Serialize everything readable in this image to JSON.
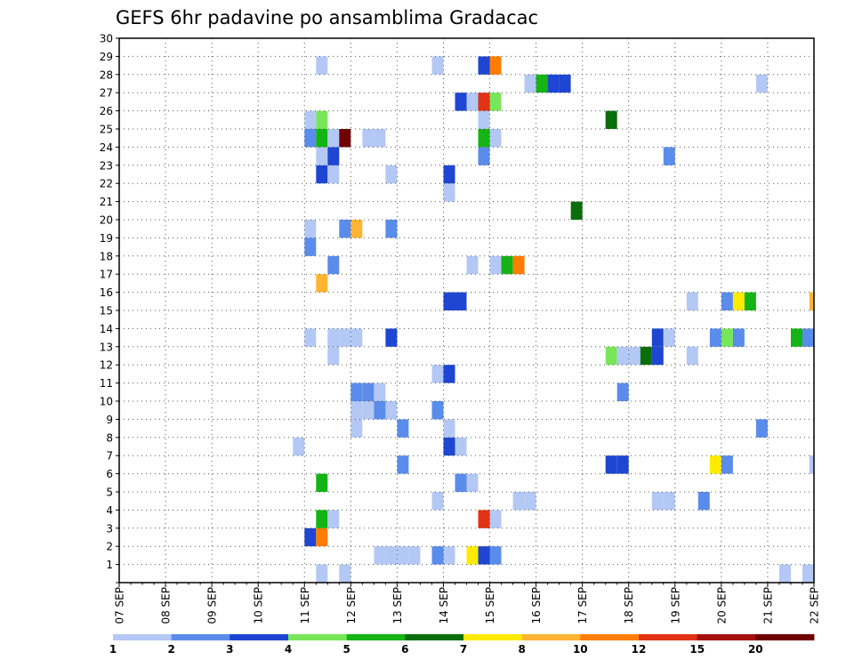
{
  "chart_data": {
    "type": "heatmap",
    "title": "GEFS 6hr padavine po ansamblima Gradacac",
    "xlabel": "",
    "ylabel": "",
    "x_tick_labels": [
      "07 SEP",
      "08 SEP",
      "09 SEP",
      "10 SEP",
      "11 SEP",
      "12 SEP",
      "13 SEP",
      "14 SEP",
      "15 SEP",
      "16 SEP",
      "17 SEP",
      "18 SEP",
      "19 SEP",
      "20 SEP",
      "21 SEP",
      "22 SEP"
    ],
    "y_tick_labels": [
      "1",
      "2",
      "3",
      "4",
      "5",
      "6",
      "7",
      "8",
      "9",
      "10",
      "11",
      "12",
      "13",
      "14",
      "15",
      "16",
      "17",
      "18",
      "19",
      "20",
      "21",
      "22",
      "23",
      "24",
      "25",
      "26",
      "27",
      "28",
      "29",
      "30"
    ],
    "x_range_days": [
      0,
      15
    ],
    "y_range": [
      0,
      30
    ],
    "step_hours": 6,
    "grid": true,
    "legend": {
      "placement": "bottom",
      "labels": [
        "1",
        "2",
        "3",
        "4",
        "5",
        "6",
        "7",
        "8",
        "10",
        "12",
        "15",
        "20"
      ],
      "colors": [
        "#b4c8f5",
        "#5a8ceb",
        "#1e46d2",
        "#78e65a",
        "#14b414",
        "#0a6e0a",
        "#ffeb00",
        "#ffb432",
        "#ff7d00",
        "#e13214",
        "#a50f0f",
        "#6e0000"
      ]
    },
    "cells": [
      {
        "t": 4.25,
        "m": 0,
        "c": 1
      },
      {
        "t": 4.75,
        "m": 0,
        "c": 1
      },
      {
        "t": 5.5,
        "m": 1,
        "c": 1
      },
      {
        "t": 5.75,
        "m": 1,
        "c": 1
      },
      {
        "t": 6,
        "m": 1,
        "c": 1
      },
      {
        "t": 6.25,
        "m": 1,
        "c": 1
      },
      {
        "t": 6.75,
        "m": 1,
        "c": 2
      },
      {
        "t": 7,
        "m": 1,
        "c": 1
      },
      {
        "t": 7.5,
        "m": 1,
        "c": 7
      },
      {
        "t": 7.75,
        "m": 1,
        "c": 3
      },
      {
        "t": 8,
        "m": 1,
        "c": 2
      },
      {
        "t": 14.25,
        "m": 0,
        "c": 1
      },
      {
        "t": 14.75,
        "m": 0,
        "c": 1
      },
      {
        "t": 4,
        "m": 2,
        "c": 3
      },
      {
        "t": 4.25,
        "m": 2,
        "c": 9
      },
      {
        "t": 4.25,
        "m": 3,
        "c": 5
      },
      {
        "t": 4.5,
        "m": 3,
        "c": 1
      },
      {
        "t": 7.75,
        "m": 3,
        "c": 10
      },
      {
        "t": 8,
        "m": 3,
        "c": 1
      },
      {
        "t": 6.75,
        "m": 4,
        "c": 1
      },
      {
        "t": 8.5,
        "m": 4,
        "c": 1
      },
      {
        "t": 8.75,
        "m": 4,
        "c": 1
      },
      {
        "t": 11.5,
        "m": 4,
        "c": 1
      },
      {
        "t": 11.75,
        "m": 4,
        "c": 1
      },
      {
        "t": 12.5,
        "m": 4,
        "c": 2
      },
      {
        "t": 4.25,
        "m": 5,
        "c": 5
      },
      {
        "t": 7.25,
        "m": 5,
        "c": 2
      },
      {
        "t": 7.5,
        "m": 5,
        "c": 1
      },
      {
        "t": 6,
        "m": 6,
        "c": 2
      },
      {
        "t": 10.5,
        "m": 6,
        "c": 3
      },
      {
        "t": 10.75,
        "m": 6,
        "c": 3
      },
      {
        "t": 12.75,
        "m": 6,
        "c": 7
      },
      {
        "t": 13,
        "m": 6,
        "c": 2
      },
      {
        "t": 14.9,
        "m": 6,
        "c": 1
      },
      {
        "t": 3.75,
        "m": 7,
        "c": 1
      },
      {
        "t": 7,
        "m": 7,
        "c": 3
      },
      {
        "t": 7.25,
        "m": 7,
        "c": 1
      },
      {
        "t": 5,
        "m": 8,
        "c": 1
      },
      {
        "t": 6,
        "m": 8,
        "c": 2
      },
      {
        "t": 7,
        "m": 8,
        "c": 1
      },
      {
        "t": 13.75,
        "m": 8,
        "c": 2
      },
      {
        "t": 5,
        "m": 9,
        "c": 1
      },
      {
        "t": 5.25,
        "m": 9,
        "c": 1
      },
      {
        "t": 5.5,
        "m": 9,
        "c": 2
      },
      {
        "t": 5.75,
        "m": 9,
        "c": 1
      },
      {
        "t": 6.75,
        "m": 9,
        "c": 2
      },
      {
        "t": 5,
        "m": 10,
        "c": 2
      },
      {
        "t": 5.25,
        "m": 10,
        "c": 2
      },
      {
        "t": 5.5,
        "m": 10,
        "c": 1
      },
      {
        "t": 10.75,
        "m": 10,
        "c": 2
      },
      {
        "t": 6.75,
        "m": 11,
        "c": 1
      },
      {
        "t": 7,
        "m": 11,
        "c": 3
      },
      {
        "t": 4.5,
        "m": 12,
        "c": 1
      },
      {
        "t": 10.5,
        "m": 12,
        "c": 4
      },
      {
        "t": 10.75,
        "m": 12,
        "c": 1
      },
      {
        "t": 11,
        "m": 12,
        "c": 1
      },
      {
        "t": 11.25,
        "m": 12,
        "c": 6
      },
      {
        "t": 11.5,
        "m": 12,
        "c": 3
      },
      {
        "t": 12.25,
        "m": 12,
        "c": 1
      },
      {
        "t": 4,
        "m": 13,
        "c": 1
      },
      {
        "t": 4.5,
        "m": 13,
        "c": 1
      },
      {
        "t": 4.75,
        "m": 13,
        "c": 1
      },
      {
        "t": 5,
        "m": 13,
        "c": 1
      },
      {
        "t": 5.75,
        "m": 13,
        "c": 3
      },
      {
        "t": 11.5,
        "m": 13,
        "c": 3
      },
      {
        "t": 11.75,
        "m": 13,
        "c": 1
      },
      {
        "t": 12.75,
        "m": 13,
        "c": 2
      },
      {
        "t": 13,
        "m": 13,
        "c": 4
      },
      {
        "t": 13.25,
        "m": 13,
        "c": 2
      },
      {
        "t": 14.5,
        "m": 13,
        "c": 5
      },
      {
        "t": 14.75,
        "m": 13,
        "c": 2
      },
      {
        "t": 7,
        "m": 15,
        "c": 3
      },
      {
        "t": 7.25,
        "m": 15,
        "c": 3
      },
      {
        "t": 12.25,
        "m": 15,
        "c": 1
      },
      {
        "t": 13,
        "m": 15,
        "c": 2
      },
      {
        "t": 13.25,
        "m": 15,
        "c": 7
      },
      {
        "t": 13.5,
        "m": 15,
        "c": 5
      },
      {
        "t": 14.9,
        "m": 15,
        "c": 8
      },
      {
        "t": 4.25,
        "m": 16,
        "c": 8
      },
      {
        "t": 4.5,
        "m": 17,
        "c": 2
      },
      {
        "t": 7.5,
        "m": 17,
        "c": 1
      },
      {
        "t": 8,
        "m": 17,
        "c": 1
      },
      {
        "t": 8.25,
        "m": 17,
        "c": 5
      },
      {
        "t": 8.5,
        "m": 17,
        "c": 9
      },
      {
        "t": 4,
        "m": 18,
        "c": 2
      },
      {
        "t": 4,
        "m": 19,
        "c": 1
      },
      {
        "t": 4.75,
        "m": 19,
        "c": 2
      },
      {
        "t": 5,
        "m": 19,
        "c": 8
      },
      {
        "t": 5.75,
        "m": 19,
        "c": 2
      },
      {
        "t": 9.75,
        "m": 20,
        "c": 6
      },
      {
        "t": 7,
        "m": 21,
        "c": 1
      },
      {
        "t": 4.25,
        "m": 22,
        "c": 3
      },
      {
        "t": 4.5,
        "m": 22,
        "c": 1
      },
      {
        "t": 5.75,
        "m": 22,
        "c": 1
      },
      {
        "t": 7,
        "m": 22,
        "c": 3
      },
      {
        "t": 4.25,
        "m": 23,
        "c": 1
      },
      {
        "t": 4.5,
        "m": 23,
        "c": 3
      },
      {
        "t": 7.75,
        "m": 23,
        "c": 2
      },
      {
        "t": 11.75,
        "m": 23,
        "c": 2
      },
      {
        "t": 4,
        "m": 24,
        "c": 2
      },
      {
        "t": 4.25,
        "m": 24,
        "c": 5
      },
      {
        "t": 4.5,
        "m": 24,
        "c": 1
      },
      {
        "t": 4.75,
        "m": 24,
        "c": 12
      },
      {
        "t": 5.25,
        "m": 24,
        "c": 1
      },
      {
        "t": 5.5,
        "m": 24,
        "c": 1
      },
      {
        "t": 7.75,
        "m": 24,
        "c": 5
      },
      {
        "t": 8,
        "m": 24,
        "c": 1
      },
      {
        "t": 4,
        "m": 25,
        "c": 1
      },
      {
        "t": 4.25,
        "m": 25,
        "c": 4
      },
      {
        "t": 7.75,
        "m": 25,
        "c": 1
      },
      {
        "t": 10.5,
        "m": 25,
        "c": 6
      },
      {
        "t": 7.25,
        "m": 26,
        "c": 3
      },
      {
        "t": 7.5,
        "m": 26,
        "c": 1
      },
      {
        "t": 7.75,
        "m": 26,
        "c": 10
      },
      {
        "t": 8,
        "m": 26,
        "c": 4
      },
      {
        "t": 8.75,
        "m": 27,
        "c": 1
      },
      {
        "t": 9,
        "m": 27,
        "c": 5
      },
      {
        "t": 9.25,
        "m": 27,
        "c": 3
      },
      {
        "t": 9.5,
        "m": 27,
        "c": 3
      },
      {
        "t": 13.75,
        "m": 27,
        "c": 1
      },
      {
        "t": 4.25,
        "m": 28,
        "c": 1
      },
      {
        "t": 6.75,
        "m": 28,
        "c": 1
      },
      {
        "t": 7.75,
        "m": 28,
        "c": 3
      },
      {
        "t": 8,
        "m": 28,
        "c": 9
      }
    ]
  }
}
